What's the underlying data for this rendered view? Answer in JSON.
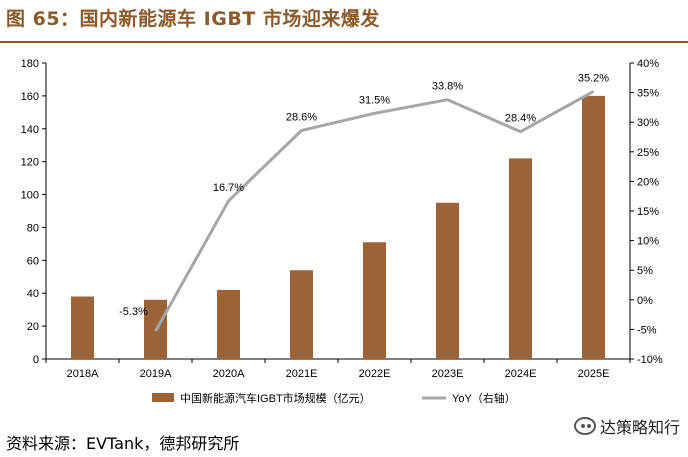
{
  "header": {
    "title": "图 65：国内新能源车 IGBT 市场迎来爆发"
  },
  "footer": {
    "source": "资料来源：EVTank，德邦研究所"
  },
  "watermark": {
    "text": "达策略知行"
  },
  "colors": {
    "bar": "#9C6436",
    "line": "#A6A6A6",
    "title": "#8B5A2B",
    "axis": "#000000"
  },
  "chart_data": {
    "type": "bar",
    "title": "国内新能源车 IGBT 市场迎来爆发",
    "categories": [
      "2018A",
      "2019A",
      "2020A",
      "2021E",
      "2022E",
      "2023E",
      "2024E",
      "2025E"
    ],
    "series": [
      {
        "name": "中国新能源汽车IGBT市场规模（亿元）",
        "type": "bar",
        "axis": "left",
        "values": [
          38,
          36,
          42,
          54,
          71,
          95,
          122,
          160
        ]
      },
      {
        "name": "YoY（右轴）",
        "type": "line",
        "axis": "right",
        "values": [
          null,
          -5.3,
          16.7,
          28.6,
          31.5,
          33.8,
          28.4,
          35.2
        ],
        "labels": [
          "",
          "-5.3%",
          "16.7%",
          "28.6%",
          "31.5%",
          "33.8%",
          "28.4%",
          "35.2%"
        ]
      }
    ],
    "y_left": {
      "min": 0,
      "max": 180,
      "step": 20,
      "ticks": [
        "0",
        "20",
        "40",
        "60",
        "80",
        "100",
        "120",
        "140",
        "160",
        "180"
      ]
    },
    "y_right": {
      "min": -10,
      "max": 40,
      "step": 5,
      "ticks": [
        "-10%",
        "-5%",
        "0%",
        "5%",
        "10%",
        "15%",
        "20%",
        "25%",
        "30%",
        "35%",
        "40%"
      ]
    },
    "legend_position": "bottom",
    "grid": false
  }
}
